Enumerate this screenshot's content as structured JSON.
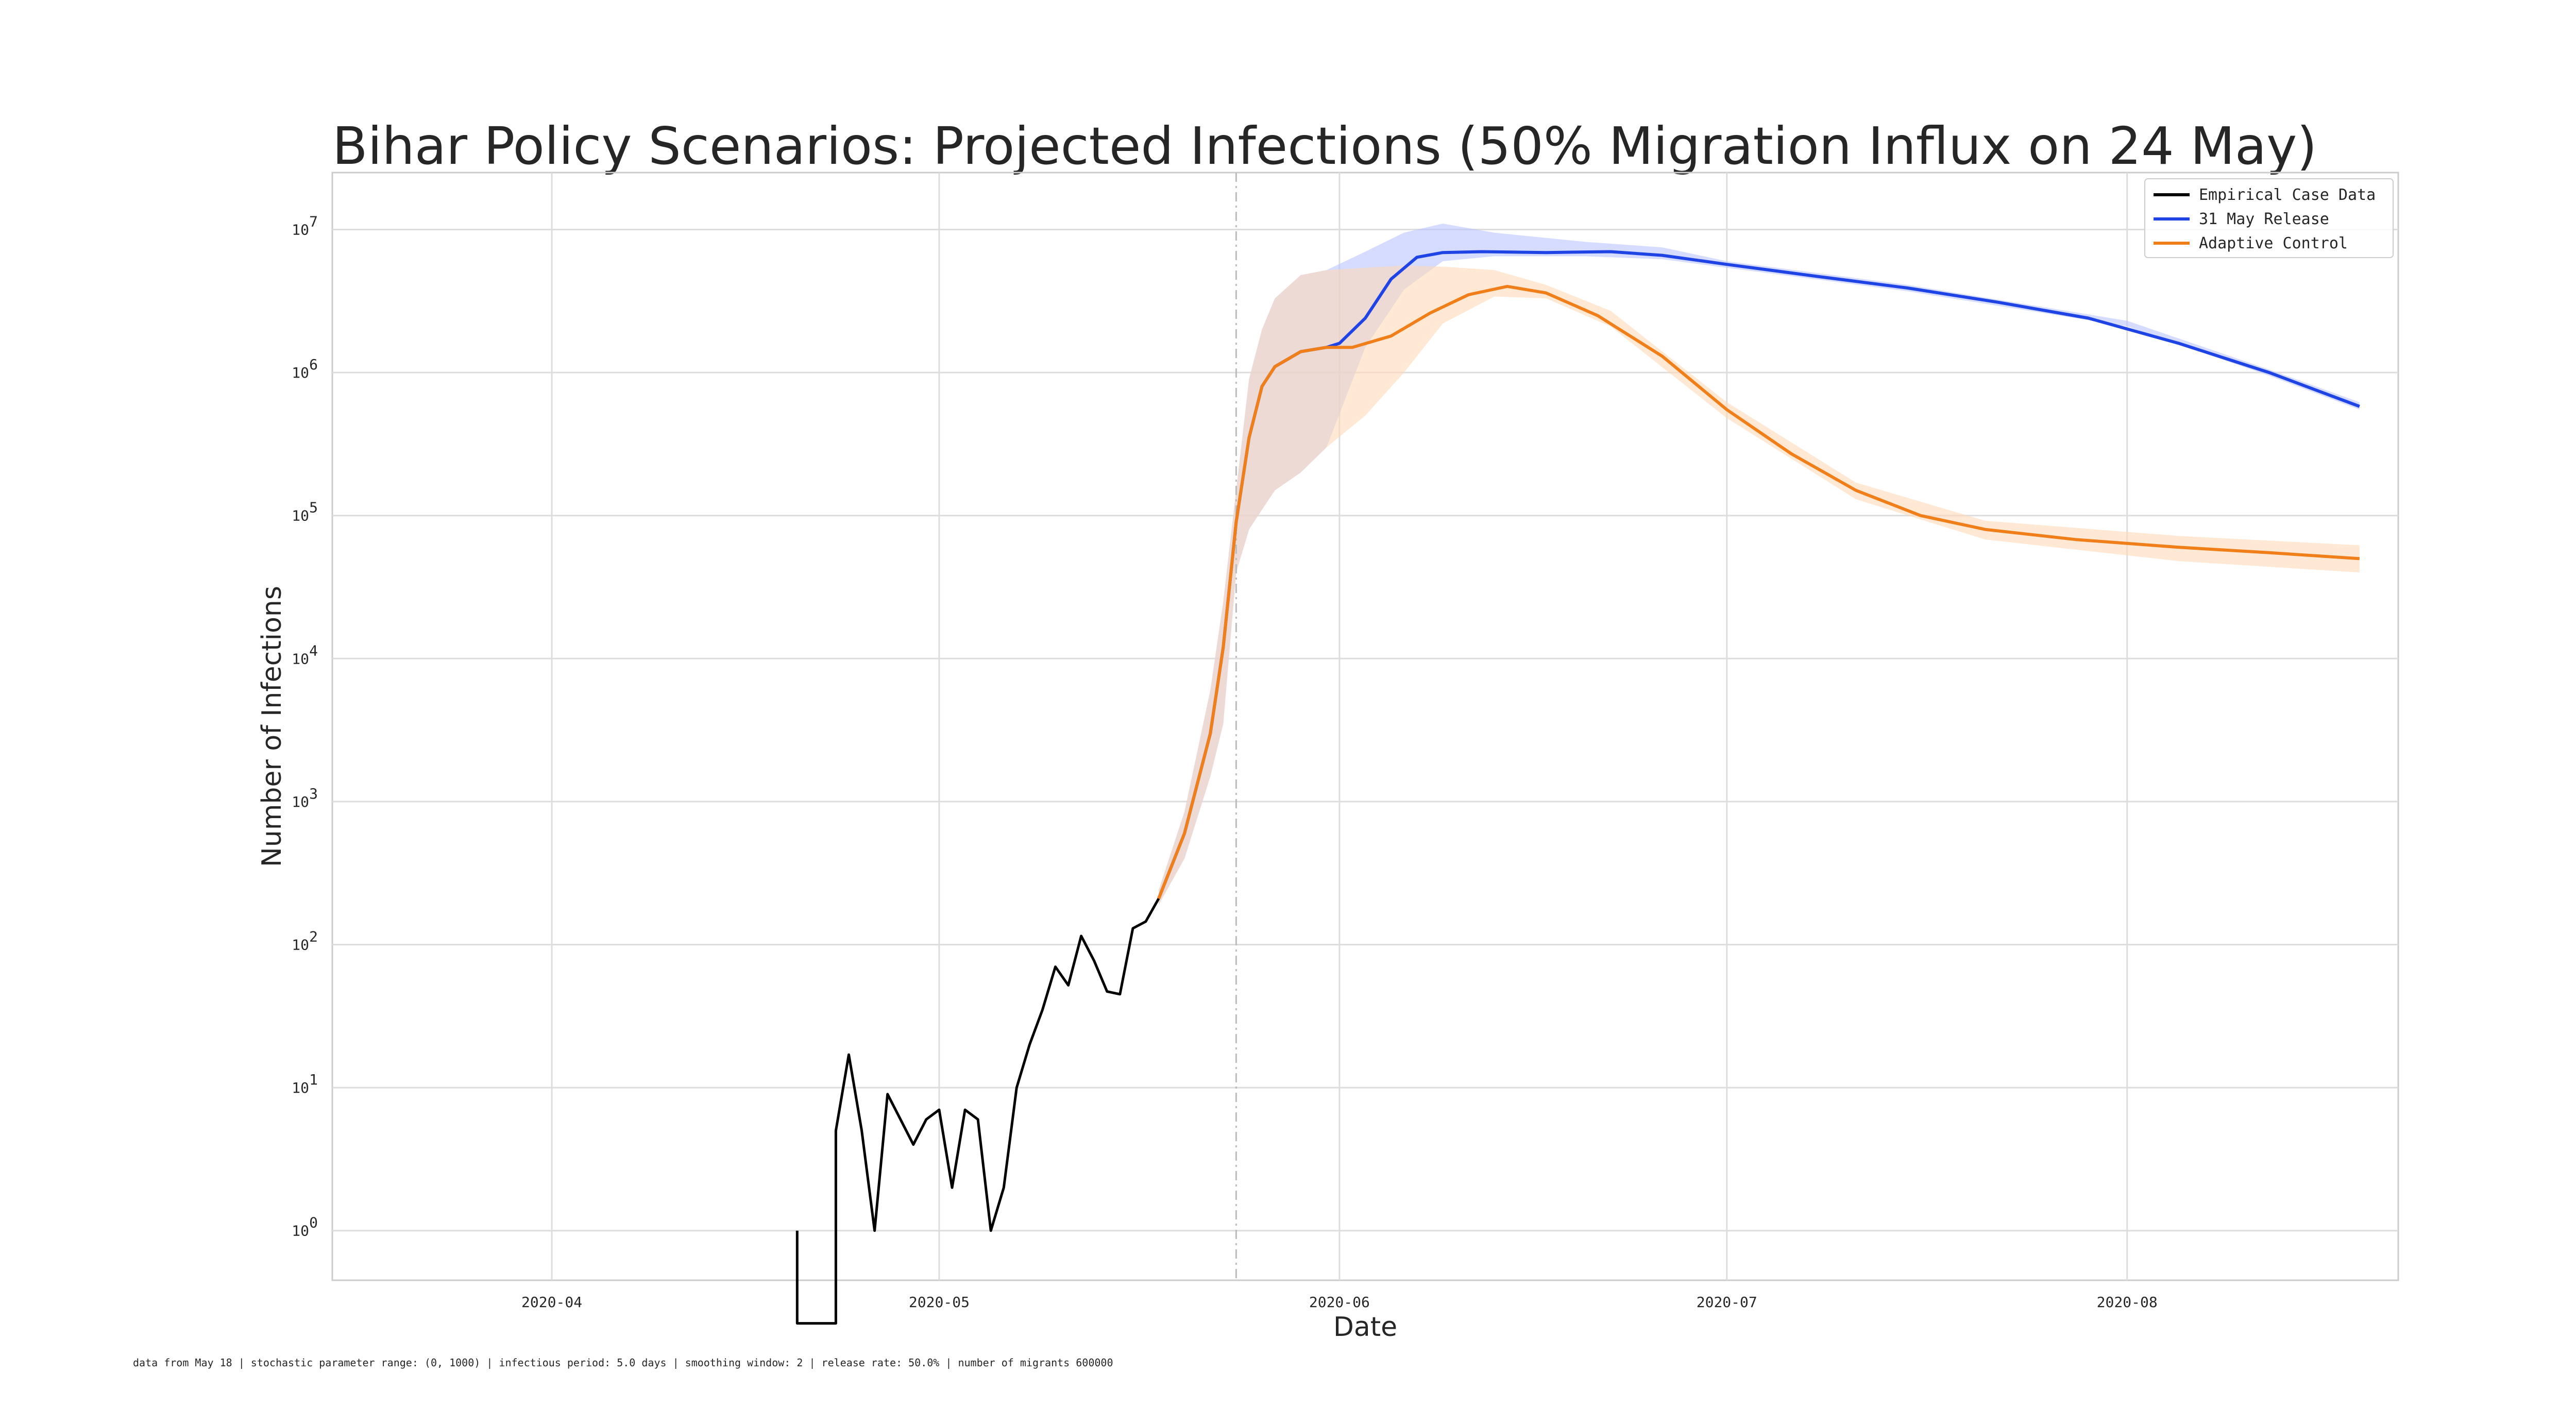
{
  "chart_data": {
    "type": "line",
    "title": "Bihar Policy Scenarios: Projected Infections (50% Migration Influx on 24 May)",
    "xlabel": "Date",
    "ylabel": "Number of Infections",
    "yscale": "log",
    "xlim": [
      "2020-03-15",
      "2020-08-22"
    ],
    "ylim": [
      0.45,
      25000000
    ],
    "x_ticks": [
      "2020-04",
      "2020-05",
      "2020-06",
      "2020-07",
      "2020-08"
    ],
    "y_ticks": [
      1,
      10,
      100,
      1000,
      10000,
      100000,
      1000000,
      10000000
    ],
    "y_tick_labels": [
      {
        "base": "10",
        "exp": "0"
      },
      {
        "base": "10",
        "exp": "1"
      },
      {
        "base": "10",
        "exp": "2"
      },
      {
        "base": "10",
        "exp": "3"
      },
      {
        "base": "10",
        "exp": "4"
      },
      {
        "base": "10",
        "exp": "5"
      },
      {
        "base": "10",
        "exp": "6"
      },
      {
        "base": "10",
        "exp": "7"
      }
    ],
    "grid": true,
    "legend_position": "top-right",
    "vline": {
      "date": "2020-05-24",
      "style": "dash-dot",
      "color": "#bbbbbb"
    },
    "series": [
      {
        "name": "Empirical Case Data",
        "color": "#000000",
        "points": [
          [
            "2020-04-20",
            1
          ],
          [
            "2020-04-20",
            0.01
          ],
          [
            "2020-04-23",
            0.01
          ],
          [
            "2020-04-23",
            5
          ],
          [
            "2020-04-24",
            17
          ],
          [
            "2020-04-25",
            5
          ],
          [
            "2020-04-26",
            1
          ],
          [
            "2020-04-27",
            9
          ],
          [
            "2020-04-28",
            6
          ],
          [
            "2020-04-29",
            4
          ],
          [
            "2020-04-30",
            6
          ],
          [
            "2020-05-01",
            7
          ],
          [
            "2020-05-02",
            2
          ],
          [
            "2020-05-03",
            7
          ],
          [
            "2020-05-04",
            6
          ],
          [
            "2020-05-05",
            1
          ],
          [
            "2020-05-06",
            2
          ],
          [
            "2020-05-07",
            10
          ],
          [
            "2020-05-08",
            20
          ],
          [
            "2020-05-09",
            35
          ],
          [
            "2020-05-10",
            70
          ],
          [
            "2020-05-11",
            52
          ],
          [
            "2020-05-12",
            115
          ],
          [
            "2020-05-13",
            77
          ],
          [
            "2020-05-14",
            47
          ],
          [
            "2020-05-15",
            45
          ],
          [
            "2020-05-16",
            130
          ],
          [
            "2020-05-17",
            145
          ],
          [
            "2020-05-18",
            210
          ]
        ]
      },
      {
        "name": "31 May Release",
        "color": "#1f44e6",
        "band_color": "#b9c4ff",
        "points": [
          [
            "2020-05-18",
            210
          ],
          [
            "2020-05-20",
            600
          ],
          [
            "2020-05-22",
            3000
          ],
          [
            "2020-05-23",
            12000
          ],
          [
            "2020-05-24",
            90000
          ],
          [
            "2020-05-25",
            350000
          ],
          [
            "2020-05-26",
            800000
          ],
          [
            "2020-05-27",
            1100000
          ],
          [
            "2020-05-29",
            1400000
          ],
          [
            "2020-05-31",
            1500000
          ],
          [
            "2020-06-01",
            1600000
          ],
          [
            "2020-06-03",
            2400000
          ],
          [
            "2020-06-05",
            4500000
          ],
          [
            "2020-06-07",
            6400000
          ],
          [
            "2020-06-09",
            6900000
          ],
          [
            "2020-06-12",
            7000000
          ],
          [
            "2020-06-17",
            6900000
          ],
          [
            "2020-06-22",
            7000000
          ],
          [
            "2020-06-26",
            6600000
          ],
          [
            "2020-07-01",
            5700000
          ],
          [
            "2020-07-08",
            4700000
          ],
          [
            "2020-07-15",
            3900000
          ],
          [
            "2020-07-22",
            3100000
          ],
          [
            "2020-07-29",
            2400000
          ],
          [
            "2020-08-05",
            1600000
          ],
          [
            "2020-08-12",
            1000000
          ],
          [
            "2020-08-19",
            580000
          ]
        ],
        "band": [
          [
            "2020-05-18",
            190,
            240
          ],
          [
            "2020-05-20",
            400,
            850
          ],
          [
            "2020-05-22",
            1500,
            6000
          ],
          [
            "2020-05-23",
            3500,
            25000
          ],
          [
            "2020-05-24",
            40000,
            150000
          ],
          [
            "2020-05-25",
            80000,
            900000
          ],
          [
            "2020-05-26",
            110000,
            2000000
          ],
          [
            "2020-05-27",
            150000,
            3300000
          ],
          [
            "2020-05-29",
            200000,
            4800000
          ],
          [
            "2020-05-31",
            300000,
            5200000
          ],
          [
            "2020-06-03",
            1500000,
            7000000
          ],
          [
            "2020-06-06",
            3800000,
            9500000
          ],
          [
            "2020-06-09",
            6000000,
            11000000
          ],
          [
            "2020-06-13",
            6500000,
            9500000
          ],
          [
            "2020-06-20",
            6500000,
            8200000
          ],
          [
            "2020-06-26",
            6200000,
            7500000
          ],
          [
            "2020-07-01",
            5400000,
            6000000
          ],
          [
            "2020-07-15",
            3700000,
            4100000
          ],
          [
            "2020-08-01",
            2100000,
            2300000
          ],
          [
            "2020-08-12",
            950000,
            1050000
          ],
          [
            "2020-08-19",
            550000,
            620000
          ]
        ]
      },
      {
        "name": "Adaptive Control",
        "color": "#f07f1a",
        "band_color": "#ffd9b8",
        "points": [
          [
            "2020-05-18",
            210
          ],
          [
            "2020-05-20",
            600
          ],
          [
            "2020-05-22",
            3000
          ],
          [
            "2020-05-23",
            12000
          ],
          [
            "2020-05-24",
            90000
          ],
          [
            "2020-05-25",
            350000
          ],
          [
            "2020-05-26",
            800000
          ],
          [
            "2020-05-27",
            1100000
          ],
          [
            "2020-05-29",
            1400000
          ],
          [
            "2020-05-31",
            1500000
          ],
          [
            "2020-06-02",
            1500000
          ],
          [
            "2020-06-05",
            1800000
          ],
          [
            "2020-06-08",
            2600000
          ],
          [
            "2020-06-11",
            3500000
          ],
          [
            "2020-06-14",
            4000000
          ],
          [
            "2020-06-17",
            3600000
          ],
          [
            "2020-06-21",
            2500000
          ],
          [
            "2020-06-26",
            1300000
          ],
          [
            "2020-07-01",
            550000
          ],
          [
            "2020-07-06",
            270000
          ],
          [
            "2020-07-11",
            150000
          ],
          [
            "2020-07-16",
            100000
          ],
          [
            "2020-07-21",
            80000
          ],
          [
            "2020-07-28",
            68000
          ],
          [
            "2020-08-05",
            60000
          ],
          [
            "2020-08-12",
            55000
          ],
          [
            "2020-08-19",
            50000
          ]
        ],
        "band": [
          [
            "2020-05-18",
            190,
            240
          ],
          [
            "2020-05-20",
            400,
            850
          ],
          [
            "2020-05-22",
            1500,
            6000
          ],
          [
            "2020-05-23",
            3500,
            25000
          ],
          [
            "2020-05-24",
            40000,
            150000
          ],
          [
            "2020-05-25",
            80000,
            900000
          ],
          [
            "2020-05-26",
            110000,
            2000000
          ],
          [
            "2020-05-27",
            150000,
            3300000
          ],
          [
            "2020-05-29",
            200000,
            4800000
          ],
          [
            "2020-05-31",
            300000,
            5200000
          ],
          [
            "2020-06-03",
            500000,
            5400000
          ],
          [
            "2020-06-06",
            1000000,
            5600000
          ],
          [
            "2020-06-09",
            2200000,
            5500000
          ],
          [
            "2020-06-13",
            3400000,
            5200000
          ],
          [
            "2020-06-17",
            3300000,
            4100000
          ],
          [
            "2020-06-22",
            2100000,
            2700000
          ],
          [
            "2020-07-01",
            480000,
            620000
          ],
          [
            "2020-07-11",
            130000,
            170000
          ],
          [
            "2020-07-21",
            68000,
            92000
          ],
          [
            "2020-08-05",
            48000,
            72000
          ],
          [
            "2020-08-19",
            40000,
            62000
          ]
        ]
      }
    ],
    "footnote": "data from May 18 | stochastic parameter range: (0, 1000) | infectious period: 5.0 days | smoothing window: 2 | release rate: 50.0% | number of migrants 600000"
  }
}
